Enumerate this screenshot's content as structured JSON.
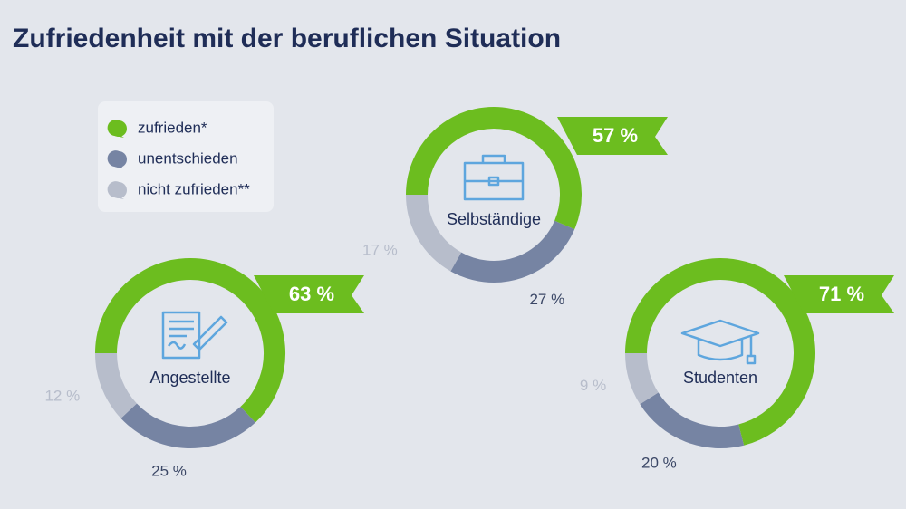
{
  "title": "Zufriedenheit mit der beruflichen Situation",
  "chart_data": [
    {
      "type": "donut",
      "title": "Selbständige",
      "categories": [
        "zufrieden*",
        "unentschieden",
        "nicht zufrieden**"
      ],
      "colors": [
        "#6cbd1f",
        "#7684a3",
        "#b7bdcb"
      ],
      "values": [
        57,
        27,
        17
      ],
      "value_labels": [
        "57 %",
        "27 %",
        "17 %"
      ]
    },
    {
      "type": "donut",
      "title": "Angestellte",
      "categories": [
        "zufrieden*",
        "unentschieden",
        "nicht zufrieden**"
      ],
      "colors": [
        "#6cbd1f",
        "#7684a3",
        "#b7bdcb"
      ],
      "values": [
        63,
        25,
        12
      ],
      "value_labels": [
        "63 %",
        "25 %",
        "12 %"
      ]
    },
    {
      "type": "donut",
      "title": "Studenten",
      "categories": [
        "zufrieden*",
        "unentschieden",
        "nicht zufrieden**"
      ],
      "colors": [
        "#6cbd1f",
        "#7684a3",
        "#b7bdcb"
      ],
      "values": [
        71,
        20,
        9
      ],
      "value_labels": [
        "71 %",
        "20 %",
        "9 %"
      ]
    }
  ]
}
